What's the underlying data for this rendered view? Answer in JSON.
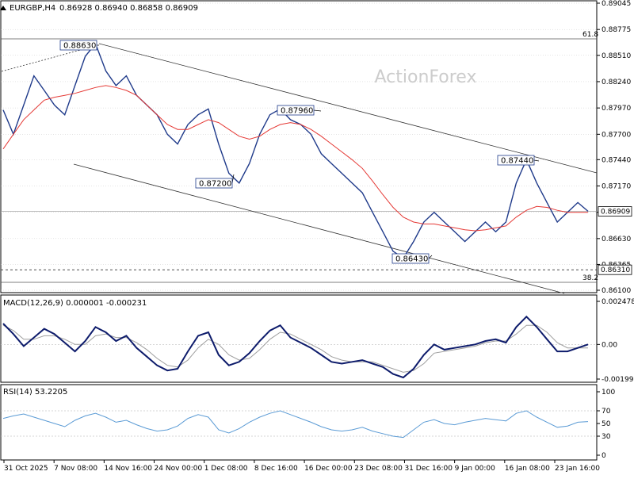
{
  "header": {
    "symbol": "EURGBP,H4",
    "ohlc": "0.86928 0.86940 0.86858 0.86909"
  },
  "watermark": "ActionForex",
  "colors": {
    "price": "#1f3a8a",
    "ma": "#e53935",
    "macd": "#0d1b6b",
    "signal": "#9e9e9e",
    "rsi": "#5b9bd5",
    "grid": "#c8c8c8",
    "channel": "#333333"
  },
  "chart_data": [
    {
      "type": "line",
      "panel": "price",
      "y_ticks": [
        "0.89045",
        "0.88775",
        "0.88510",
        "0.88240",
        "0.87970",
        "0.87700",
        "0.87440",
        "0.87170",
        "0.86900",
        "0.86630",
        "0.86365",
        "0.86100"
      ],
      "ylim": [
        0.861,
        0.89045
      ],
      "current_price": "0.86909",
      "level_label": "0.86310",
      "fib_labels": [
        "61.8",
        "38.2"
      ],
      "annotations": [
        "0.88630",
        "0.87960",
        "0.87200",
        "0.87440",
        "0.86430"
      ],
      "x_labels": [
        "31 Oct 2025",
        "7 Nov 08:00",
        "14 Nov 16:00",
        "24 Nov 00:00",
        "1 Dec 08:00",
        "8 Dec 16:00",
        "16 Dec 00:00",
        "23 Dec 08:00",
        "31 Dec 16:00",
        "9 Jan 00:00",
        "16 Jan 08:00",
        "23 Jan 16:00"
      ],
      "series": [
        {
          "values": [
            0.8795,
            0.877,
            0.88,
            0.883,
            0.8815,
            0.88,
            0.879,
            0.882,
            0.885,
            0.8863,
            0.8835,
            0.882,
            0.883,
            0.881,
            0.88,
            0.879,
            0.877,
            0.876,
            0.878,
            0.879,
            0.8796,
            0.876,
            0.873,
            0.872,
            0.874,
            0.877,
            0.879,
            0.8796,
            0.8785,
            0.878,
            0.877,
            0.875,
            0.874,
            0.873,
            0.872,
            0.871,
            0.869,
            0.867,
            0.865,
            0.8643,
            0.866,
            0.868,
            0.869,
            0.868,
            0.867,
            0.866,
            0.867,
            0.868,
            0.867,
            0.868,
            0.872,
            0.8744,
            0.872,
            0.87,
            0.868,
            0.869,
            0.87,
            0.8691
          ]
        },
        {
          "values": [
            0.8755,
            0.877,
            0.8785,
            0.8795,
            0.8805,
            0.8808,
            0.881,
            0.8812,
            0.8815,
            0.8818,
            0.882,
            0.8818,
            0.8815,
            0.881,
            0.88,
            0.879,
            0.878,
            0.8775,
            0.8775,
            0.878,
            0.8785,
            0.8782,
            0.8775,
            0.8768,
            0.8765,
            0.8768,
            0.8775,
            0.878,
            0.8782,
            0.878,
            0.8775,
            0.8768,
            0.876,
            0.8752,
            0.8744,
            0.8735,
            0.8722,
            0.8708,
            0.8695,
            0.8685,
            0.868,
            0.8678,
            0.8678,
            0.8676,
            0.8674,
            0.8672,
            0.8671,
            0.8672,
            0.8674,
            0.8676,
            0.8685,
            0.8692,
            0.8696,
            0.8695,
            0.8692,
            0.869,
            0.869,
            0.869
          ]
        }
      ]
    },
    {
      "type": "line",
      "panel": "macd",
      "title": "MACD(12,26,9) 0.000001 -0.000231",
      "y_ticks": [
        "0.002478",
        "0.00",
        "-0.001991"
      ],
      "ylim": [
        -0.001991,
        0.002478
      ],
      "series": [
        {
          "values": [
            0.0012,
            0.0006,
            -0.0001,
            0.0004,
            0.0009,
            0.0006,
            0.0001,
            -0.0004,
            0.0002,
            0.001,
            0.0007,
            0.0002,
            0.0005,
            -0.0002,
            -0.0007,
            -0.0012,
            -0.0015,
            -0.0014,
            -0.0004,
            0.0005,
            0.0007,
            -0.0006,
            -0.0012,
            -0.001,
            -0.0005,
            0.0002,
            0.0008,
            0.0011,
            0.0004,
            0.0001,
            -0.0002,
            -0.0006,
            -0.001,
            -0.0011,
            -0.001,
            -0.0009,
            -0.0011,
            -0.0013,
            -0.0017,
            -0.0019,
            -0.0014,
            -0.0006,
            0.0,
            -0.0003,
            -0.0002,
            -0.0001,
            0.0,
            0.0002,
            0.0003,
            0.0001,
            0.001,
            0.0016,
            0.001,
            0.0003,
            -0.0004,
            -0.0004,
            -0.0002,
            0.0
          ]
        },
        {
          "values": [
            0.0011,
            0.0008,
            0.0003,
            0.0003,
            0.0005,
            0.0005,
            0.0003,
            0.0,
            0.0,
            0.0005,
            0.0006,
            0.0004,
            0.0004,
            0.0001,
            -0.0003,
            -0.0008,
            -0.0012,
            -0.0013,
            -0.0009,
            -0.0002,
            0.0003,
            0.0,
            -0.0006,
            -0.0009,
            -0.0008,
            -0.0003,
            0.0003,
            0.0007,
            0.0006,
            0.0003,
            0.0,
            -0.0003,
            -0.0007,
            -0.0009,
            -0.001,
            -0.001,
            -0.001,
            -0.0012,
            -0.0014,
            -0.0016,
            -0.0015,
            -0.0011,
            -0.0005,
            -0.0004,
            -0.0003,
            -0.0002,
            -0.0001,
            0.0001,
            0.0002,
            0.0002,
            0.0006,
            0.0011,
            0.0011,
            0.0007,
            0.0001,
            -0.0002,
            -0.0002,
            -0.0002
          ]
        }
      ]
    },
    {
      "type": "line",
      "panel": "rsi",
      "title": "RSI(14) 53.2205",
      "y_ticks": [
        "100",
        "70",
        "50",
        "30",
        "0"
      ],
      "ylim": [
        0,
        100
      ],
      "guide_levels": [
        70,
        30
      ],
      "series": [
        {
          "values": [
            58,
            62,
            65,
            60,
            55,
            50,
            45,
            55,
            62,
            66,
            60,
            52,
            55,
            48,
            42,
            38,
            40,
            46,
            58,
            64,
            60,
            40,
            35,
            42,
            52,
            60,
            66,
            70,
            64,
            58,
            52,
            45,
            40,
            38,
            40,
            44,
            38,
            34,
            30,
            28,
            40,
            52,
            56,
            50,
            48,
            52,
            55,
            58,
            56,
            54,
            66,
            70,
            60,
            52,
            44,
            46,
            52,
            53
          ]
        }
      ]
    }
  ]
}
